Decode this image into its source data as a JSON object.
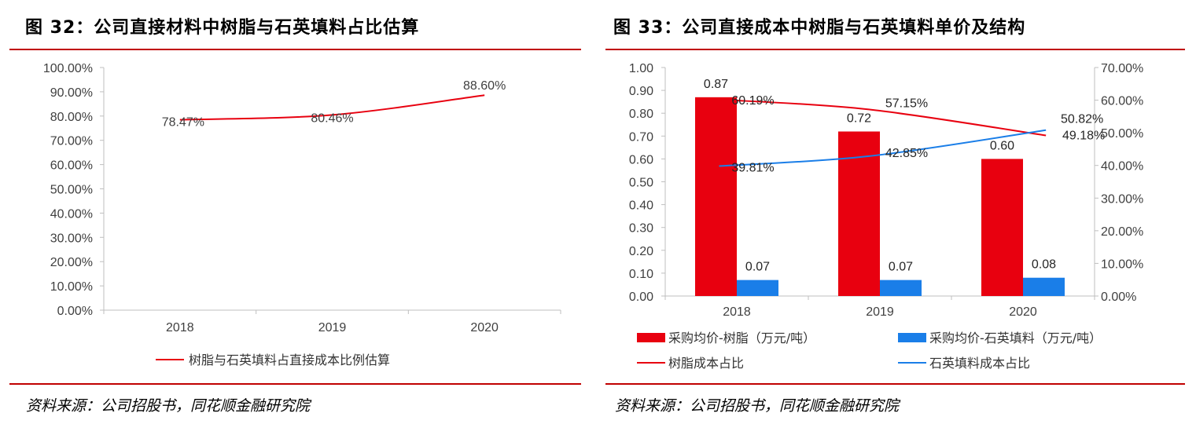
{
  "left": {
    "title": "图 32：公司直接材料中树脂与石英填料占比估算",
    "source": "资料来源：公司招股书，同花顺金融研究院",
    "chart_data": {
      "type": "line",
      "x": [
        "2018",
        "2019",
        "2020"
      ],
      "y_ticks": [
        "0.00%",
        "10.00%",
        "20.00%",
        "30.00%",
        "40.00%",
        "50.00%",
        "60.00%",
        "70.00%",
        "80.00%",
        "90.00%",
        "100.00%"
      ],
      "ylim": [
        0,
        100
      ],
      "legend_position": "bottom",
      "series": [
        {
          "name": "树脂与石英填料占直接成本比例估算",
          "values": [
            78.47,
            80.46,
            88.6
          ],
          "labels": [
            "78.47%",
            "80.46%",
            "88.60%"
          ],
          "color": "#e8000f"
        }
      ]
    }
  },
  "right": {
    "title": "图 33：公司直接成本中树脂与石英填料单价及结构",
    "source": "资料来源：公司招股书，同花顺金融研究院",
    "chart_data": {
      "type": "bar",
      "categories": [
        "2018",
        "2019",
        "2020"
      ],
      "y_left_ticks": [
        "0.00",
        "0.10",
        "0.20",
        "0.30",
        "0.40",
        "0.50",
        "0.60",
        "0.70",
        "0.80",
        "0.90",
        "1.00"
      ],
      "y_left_lim": [
        0,
        1.0
      ],
      "y_right_ticks": [
        "0.00%",
        "10.00%",
        "20.00%",
        "30.00%",
        "40.00%",
        "50.00%",
        "60.00%",
        "70.00%"
      ],
      "y_right_lim": [
        0,
        70
      ],
      "legend_position": "bottom",
      "bar_series": [
        {
          "name": "采购均价-树脂（万元/吨）",
          "values": [
            0.87,
            0.72,
            0.6
          ],
          "labels": [
            "0.87",
            "0.72",
            "0.60"
          ],
          "color": "#e8000f"
        },
        {
          "name": "采购均价-石英填料（万元/吨）",
          "values": [
            0.07,
            0.07,
            0.08
          ],
          "labels": [
            "0.07",
            "0.07",
            "0.08"
          ],
          "color": "#1a7ee8"
        }
      ],
      "line_series": [
        {
          "name": "树脂成本占比",
          "values": [
            60.19,
            57.15,
            49.18
          ],
          "labels": [
            "60.19%",
            "57.15%",
            "49.18%"
          ],
          "color": "#e8000f"
        },
        {
          "name": "石英填料成本占比",
          "values": [
            39.81,
            42.85,
            50.82
          ],
          "labels": [
            "39.81%",
            "42.85%",
            "50.82%"
          ],
          "color": "#1a7ee8"
        }
      ]
    }
  }
}
